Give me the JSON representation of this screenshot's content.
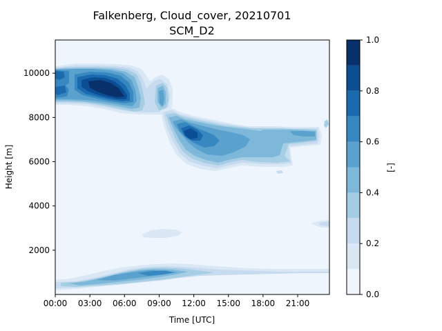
{
  "chart_data": {
    "type": "contour",
    "title": "Falkenberg, Cloud_cover, 20210701",
    "subtitle": "SCM_D2",
    "xlabel": "Time [UTC]",
    "ylabel": "Height [m]",
    "colorbar_label": "[-]",
    "colormap": "Blues",
    "xlim_hours": [
      0,
      23.75
    ],
    "ylim": [
      0,
      11500
    ],
    "x_ticks": [
      "00:00",
      "03:00",
      "06:00",
      "09:00",
      "12:00",
      "15:00",
      "18:00",
      "21:00"
    ],
    "x_tick_hours": [
      0,
      3,
      6,
      9,
      12,
      15,
      18,
      21
    ],
    "y_ticks": [
      "2000",
      "4000",
      "6000",
      "8000",
      "10000"
    ],
    "y_tick_values": [
      2000,
      4000,
      6000,
      8000,
      10000
    ],
    "colorbar_ticks": [
      "0.0",
      "0.2",
      "0.4",
      "0.6",
      "0.8",
      "1.0"
    ],
    "colorbar_tick_values": [
      0.0,
      0.2,
      0.4,
      0.6,
      0.8,
      1.0
    ],
    "levels": [
      0.0,
      0.1,
      0.2,
      0.3,
      0.4,
      0.5,
      0.6,
      0.7,
      0.8,
      0.9,
      1.0
    ],
    "level_colors": [
      "#eff5fd",
      "#dae8f6",
      "#c6dbef",
      "#a5cde3",
      "#7db8da",
      "#5aa1ce",
      "#3788c0",
      "#1b6aaf",
      "#0b4e94",
      "#08306b"
    ],
    "cloud_regions": [
      {
        "name": "upper cloud deck",
        "height_range": [
          8200,
          10300
        ],
        "time_range": [
          "00:00",
          "10:00"
        ],
        "max_cover": 1.0
      },
      {
        "name": "mid-level cloud",
        "height_range": [
          5700,
          8000
        ],
        "time_range": [
          "09:30",
          "23:00"
        ],
        "max_cover": 0.8
      },
      {
        "name": "boundary layer cloud",
        "height_range": [
          100,
          1300
        ],
        "time_range": [
          "00:00",
          "23:45"
        ],
        "max_cover": 0.7
      },
      {
        "name": "small patch",
        "height_range": [
          2600,
          2950
        ],
        "time_range": [
          "07:30",
          "10:30"
        ],
        "max_cover": 0.15
      },
      {
        "name": "small patch",
        "height_range": [
          3050,
          3350
        ],
        "time_range": [
          "22:00",
          "23:45"
        ],
        "max_cover": 0.2
      }
    ]
  }
}
